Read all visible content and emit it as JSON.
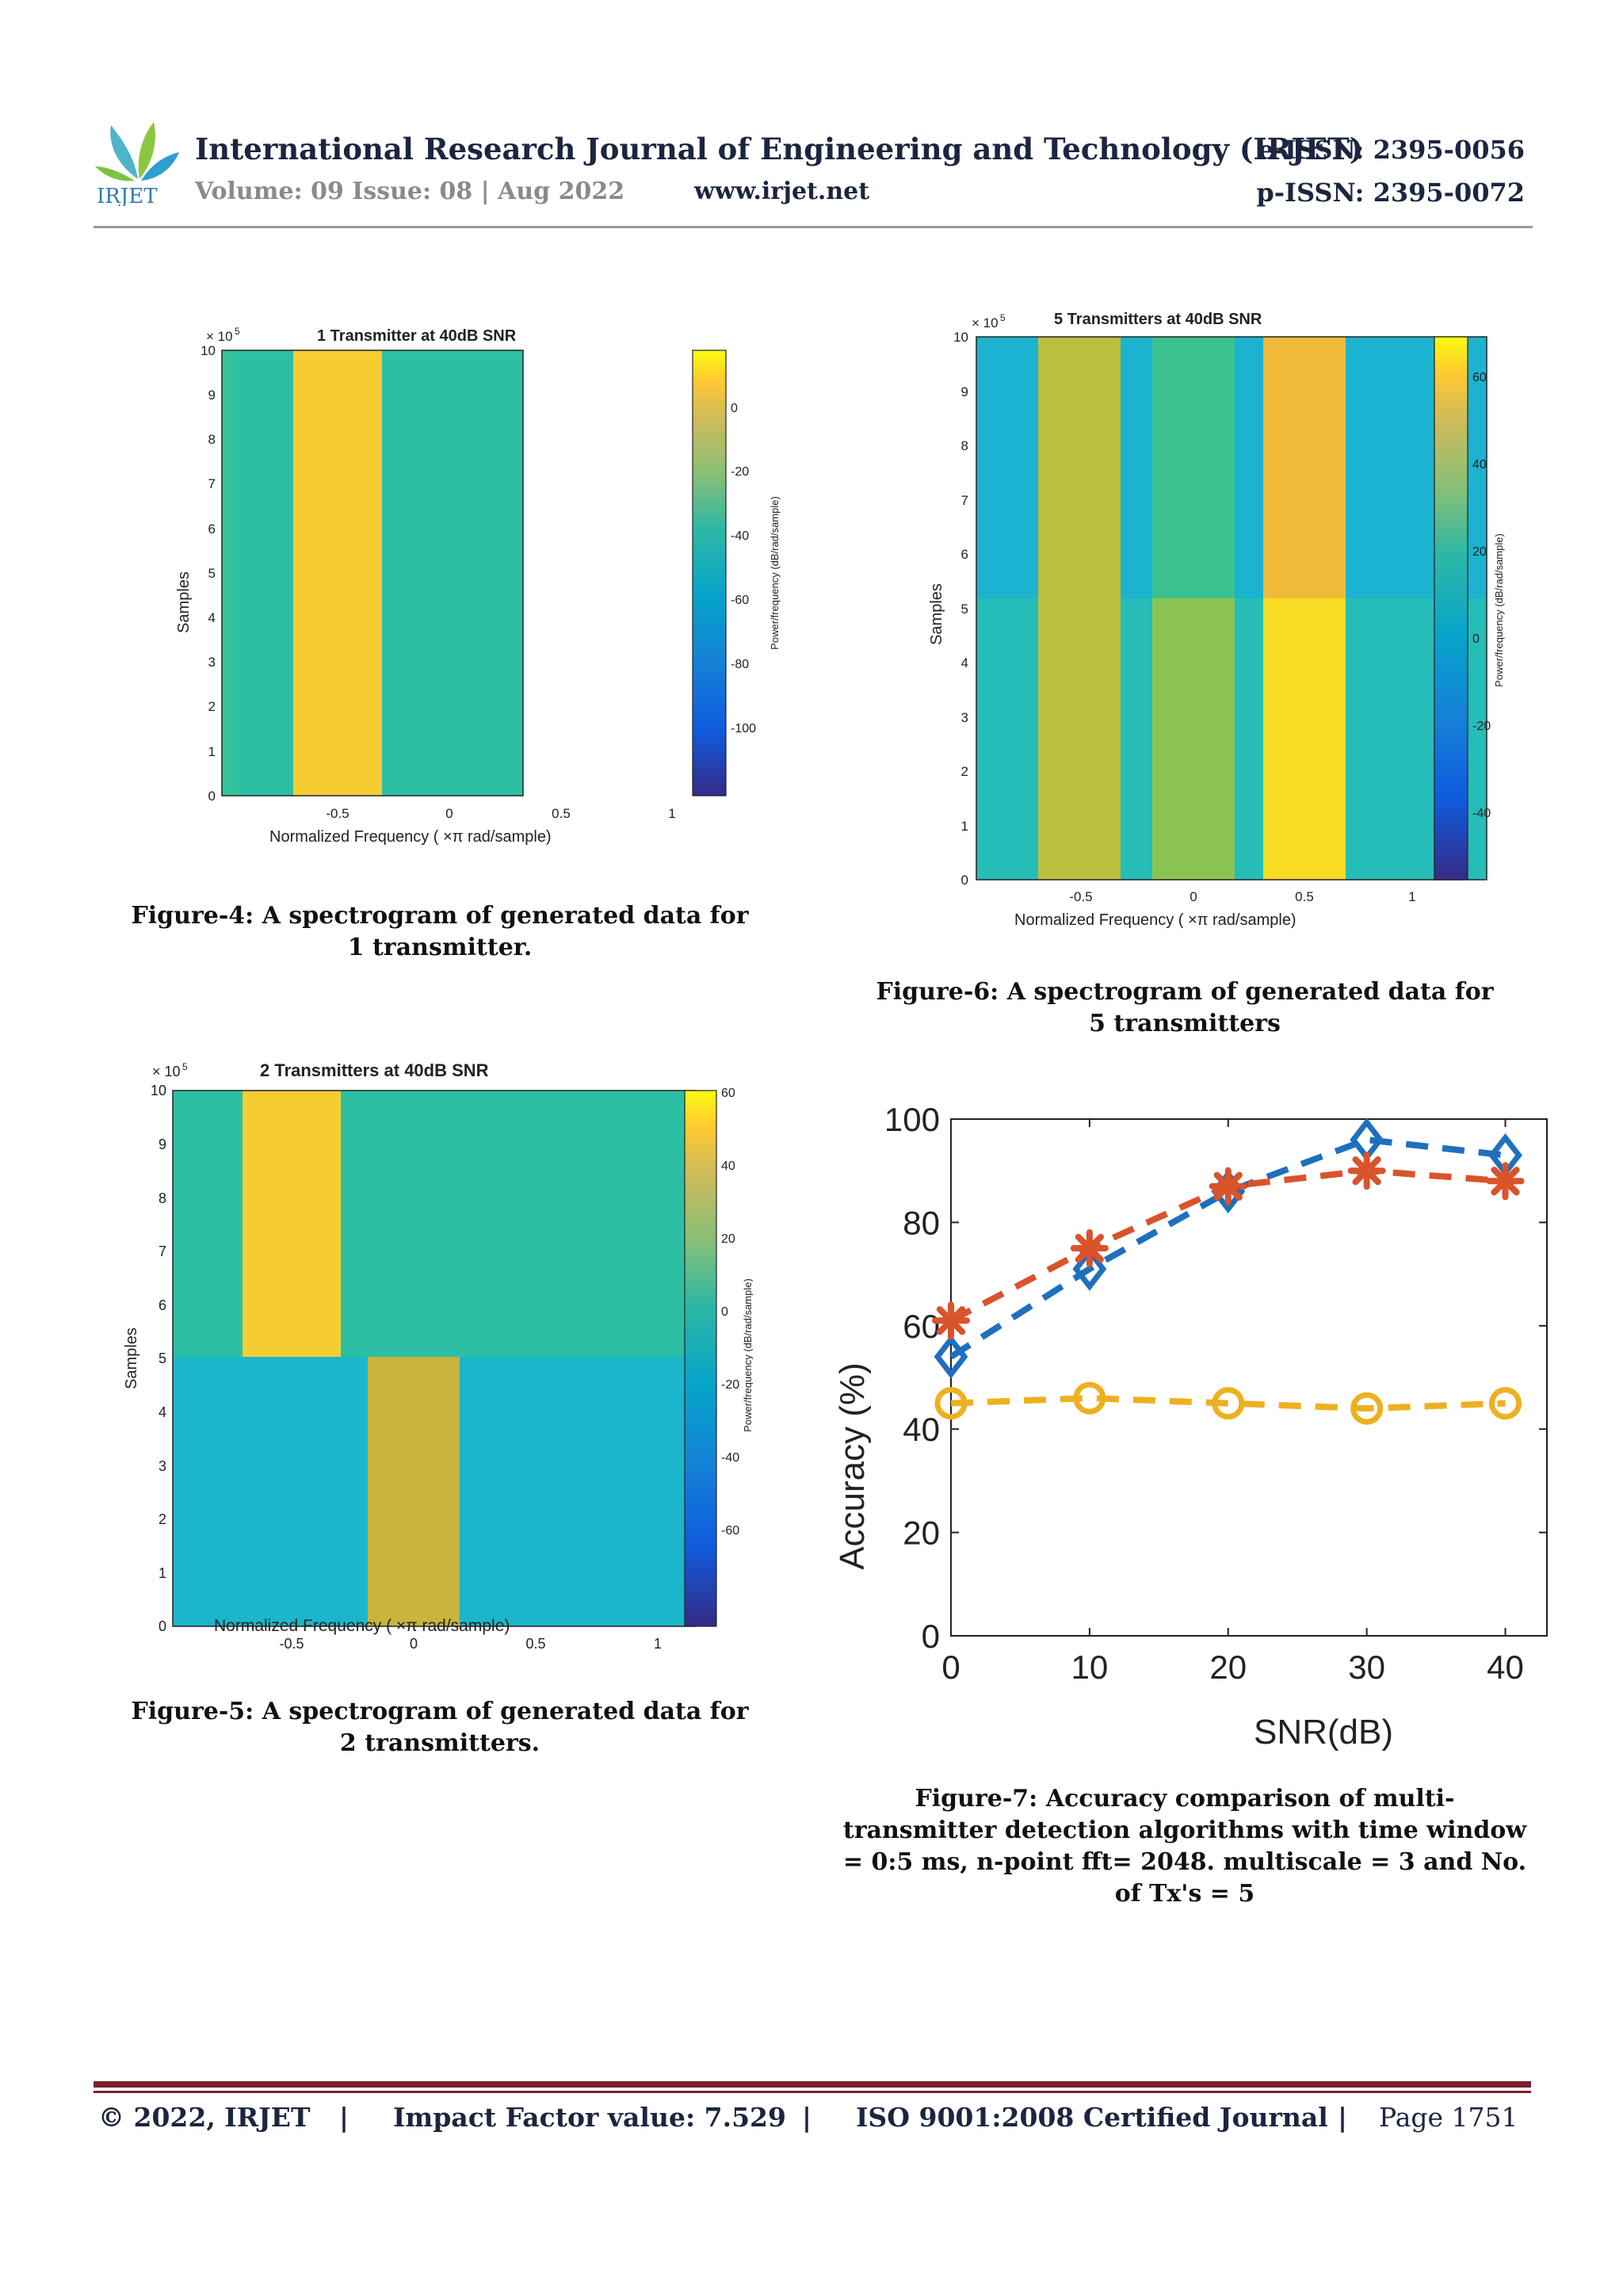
{
  "header": {
    "journal_title": "International Research Journal of Engineering and Technology (IRJET)",
    "e_issn": "e-ISSN: 2395-0056",
    "p_issn": "p-ISSN: 2395-0072",
    "volume": "Volume: 09 Issue: 08 | Aug 2022",
    "website": "www.irjet.net",
    "logo_text": "IRJET"
  },
  "spectrograms": {
    "fig4": {
      "title": "1 Transmitter at 40dB SNR",
      "xlabel": "Normalized Frequency  (     ×π rad/sample)",
      "ylabel": "Samples",
      "yexp": "× 10",
      "yexp_sup": "5",
      "cbar_label": "Power/frequency (dB/rad/sample)",
      "xticks": [
        "-0.5",
        "0",
        "0.5",
        "1"
      ],
      "yticks": [
        "0",
        "1",
        "2",
        "3",
        "4",
        "5",
        "6",
        "7",
        "8",
        "9",
        "10"
      ],
      "cticks": [
        "0",
        "-20",
        "-40",
        "-60",
        "-80",
        "-100"
      ]
    },
    "fig5": {
      "title": "2 Transmitters at 40dB SNR",
      "xlabel": "Normalized Frequency  (     ×π rad/sample)",
      "ylabel": "Samples",
      "yexp": "× 10",
      "yexp_sup": "5",
      "cbar_label": "Power/frequency (dB/rad/sample)",
      "xticks": [
        "-0.5",
        "0",
        "0.5",
        "1"
      ],
      "yticks": [
        "0",
        "1",
        "2",
        "3",
        "4",
        "5",
        "6",
        "7",
        "8",
        "9",
        "10"
      ],
      "cticks": [
        "60",
        "40",
        "20",
        "0",
        "-20",
        "-40",
        "-60"
      ]
    },
    "fig6": {
      "title": "5 Transmitters at 40dB SNR",
      "xlabel": "Normalized Frequency  (     ×π rad/sample)",
      "ylabel": "Samples",
      "yexp": "× 10",
      "yexp_sup": "5",
      "cbar_label": "Power/frequency (dB/rad/sample)",
      "xticks": [
        "-0.5",
        "0",
        "0.5",
        "1"
      ],
      "yticks": [
        "0",
        "1",
        "2",
        "3",
        "4",
        "5",
        "6",
        "7",
        "8",
        "9",
        "10"
      ],
      "cticks": [
        "60",
        "40",
        "20",
        "0",
        "-20",
        "-40"
      ]
    }
  },
  "captions": {
    "fig4": "Figure-4: A spectrogram of generated data for 1 transmitter.",
    "fig5": "Figure-5: A spectrogram of generated data for 2 transmitters.",
    "fig6": "Figure-6: A spectrogram of generated data for 5 transmitters",
    "fig7": "Figure-7: Accuracy comparison of multi-transmitter detection algorithms with time window = 0:5 ms, n-point fft= 2048.  multiscale = 3 and No. of Tx's = 5"
  },
  "chart_data": {
    "type": "line",
    "x": [
      0,
      10,
      20,
      30,
      40
    ],
    "xlabel": "SNR(dB)",
    "ylabel": "Accuracy (%)",
    "xlim": [
      0,
      43
    ],
    "ylim": [
      0,
      100
    ],
    "xticks": [
      "0",
      "10",
      "20",
      "30",
      "40"
    ],
    "yticks": [
      "0",
      "20",
      "40",
      "60",
      "80",
      "100"
    ],
    "series": [
      {
        "values": [
          54,
          71,
          86,
          96,
          93
        ],
        "color": "#1f6fbf",
        "marker": "diamond"
      },
      {
        "values": [
          61,
          75,
          87,
          90,
          88
        ],
        "color": "#d9532b",
        "marker": "asterisk"
      },
      {
        "values": [
          45,
          46,
          45,
          44,
          45
        ],
        "color": "#edb020",
        "marker": "circle"
      }
    ]
  },
  "footer": {
    "copyright": "© 2022, IRJET",
    "impact": "Impact Factor value: 7.529",
    "iso": "ISO 9001:2008 Certified Journal",
    "page": "Page 1751",
    "sep": "|"
  }
}
